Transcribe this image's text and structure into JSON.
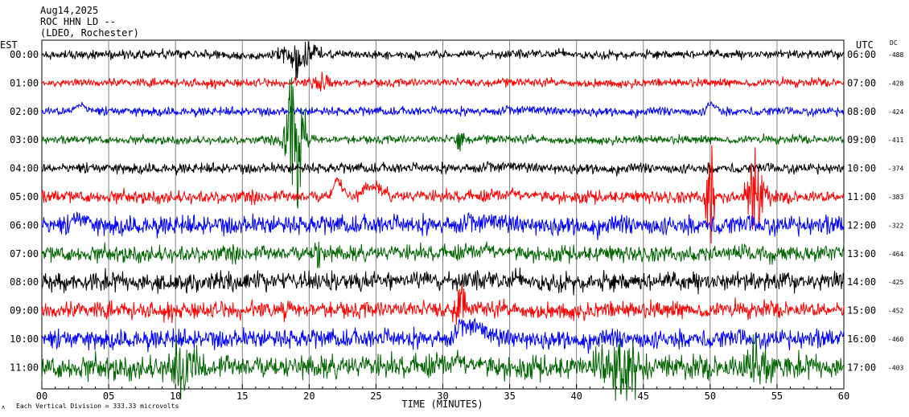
{
  "header": {
    "date": "Aug14,2025",
    "station": "ROC HHN LD --",
    "network": "(LDEO, Rochester)"
  },
  "footnote": "Each Vertical Division = 333.33 microvolts",
  "chart_data": {
    "type": "line",
    "title": "",
    "xlabel": "TIME (MINUTES)",
    "x_ticks": [
      "00",
      "05",
      "10",
      "15",
      "20",
      "25",
      "30",
      "35",
      "40",
      "45",
      "50",
      "55",
      "60"
    ],
    "xlim": [
      0,
      60
    ],
    "left_axis_label": "EST",
    "right_axis_label": "UTC",
    "dc_label": "DC",
    "grid": true,
    "colors": {
      "black": "#000000",
      "red": "#ff0000",
      "blue": "#0000ff",
      "green": "#006400"
    },
    "series": [
      {
        "est": "00:00",
        "utc": "06:00",
        "dc": "-488",
        "color": "black",
        "amp": 0.6,
        "events": [
          {
            "t": 18.5,
            "dur": 2.5,
            "amp": 1.2
          }
        ]
      },
      {
        "est": "01:00",
        "utc": "07:00",
        "dc": "-428",
        "color": "red",
        "amp": 0.55,
        "events": [
          {
            "t": 20.5,
            "dur": 1.2,
            "amp": 1.0
          }
        ]
      },
      {
        "est": "02:00",
        "utc": "08:00",
        "dc": "-424",
        "color": "blue",
        "amp": 0.6,
        "events": [
          {
            "t": 2.0,
            "dur": 2.0,
            "amp": 0.6,
            "wave": true
          },
          {
            "t": 49.5,
            "dur": 1.5,
            "amp": 0.8,
            "wave": true
          }
        ]
      },
      {
        "est": "03:00",
        "utc": "09:00",
        "dc": "-411",
        "color": "green",
        "amp": 0.55,
        "events": [
          {
            "t": 18.5,
            "dur": 1.5,
            "amp": 5.0
          },
          {
            "t": 31.0,
            "dur": 0.6,
            "amp": 1.2
          }
        ]
      },
      {
        "est": "04:00",
        "utc": "10:00",
        "dc": "-374",
        "color": "black",
        "amp": 0.7,
        "events": []
      },
      {
        "est": "05:00",
        "utc": "11:00",
        "dc": "-383",
        "color": "red",
        "amp": 0.85,
        "events": [
          {
            "t": 21.5,
            "dur": 1.5,
            "amp": 1.8,
            "wave": true
          },
          {
            "t": 23.5,
            "dur": 3.0,
            "amp": 1.2,
            "wave": true
          },
          {
            "t": 49.8,
            "dur": 0.6,
            "amp": 3.5
          },
          {
            "t": 53.0,
            "dur": 1.5,
            "amp": 2.5
          }
        ]
      },
      {
        "est": "06:00",
        "utc": "12:00",
        "dc": "-322",
        "color": "blue",
        "amp": 1.3,
        "events": [
          {
            "t": 2.0,
            "dur": 2.0,
            "amp": 0.8,
            "wave": true
          }
        ]
      },
      {
        "est": "07:00",
        "utc": "13:00",
        "dc": "-464",
        "color": "green",
        "amp": 1.1,
        "events": [
          {
            "t": 20.5,
            "dur": 0.5,
            "amp": 1.5
          }
        ]
      },
      {
        "est": "08:00",
        "utc": "14:00",
        "dc": "-425",
        "color": "black",
        "amp": 1.3,
        "events": []
      },
      {
        "est": "09:00",
        "utc": "15:00",
        "dc": "-452",
        "color": "red",
        "amp": 1.1,
        "events": [
          {
            "t": 18.0,
            "dur": 0.5,
            "amp": 1.5
          },
          {
            "t": 31.0,
            "dur": 1.0,
            "amp": 1.5
          }
        ]
      },
      {
        "est": "10:00",
        "utc": "16:00",
        "dc": "-460",
        "color": "blue",
        "amp": 1.3,
        "events": [
          {
            "t": 30.5,
            "dur": 3.5,
            "amp": 1.2,
            "wave": true
          }
        ]
      },
      {
        "est": "11:00",
        "utc": "17:00",
        "dc": "-403",
        "color": "green",
        "amp": 1.6,
        "events": [
          {
            "t": 10.0,
            "dur": 2.0,
            "amp": 1.8
          },
          {
            "t": 42.0,
            "dur": 4.0,
            "amp": 1.8
          },
          {
            "t": 53.0,
            "dur": 2.0,
            "amp": 1.6
          }
        ]
      }
    ]
  }
}
